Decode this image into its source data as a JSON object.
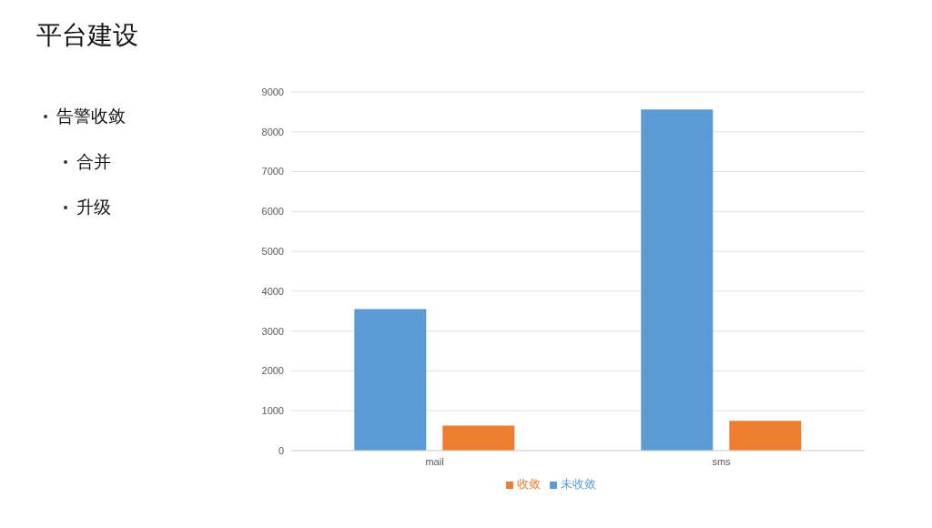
{
  "chart_data": {
    "type": "bar",
    "title": "平台建设",
    "annotations": [
      "告警收敛",
      "合并",
      "升级"
    ],
    "categories": [
      "mail",
      "sms"
    ],
    "series": [
      {
        "name": "未收敛",
        "color": "#5b9bd5",
        "values": [
          3550,
          8560
        ]
      },
      {
        "name": "收敛",
        "color": "#ed7d31",
        "values": [
          630,
          750
        ]
      }
    ],
    "ylim": [
      0,
      9000
    ],
    "yticks": [
      0,
      1000,
      2000,
      3000,
      4000,
      5000,
      6000,
      7000,
      8000,
      9000
    ],
    "grid": "y",
    "legend": "bottom"
  }
}
